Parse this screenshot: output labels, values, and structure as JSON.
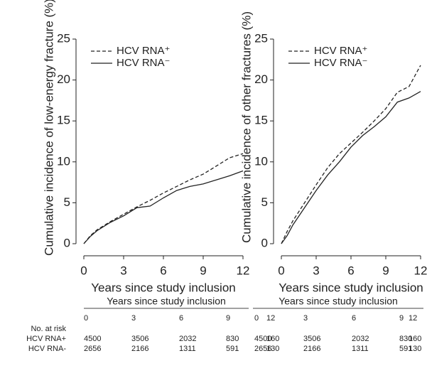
{
  "chart_data": [
    {
      "type": "line",
      "ylabel": "Cumulative incidence of low-energy fracture (%)",
      "xlabel": "Years since study inclusion",
      "x": [
        0,
        0.5,
        1,
        2,
        3,
        4,
        5,
        6,
        7,
        8,
        9,
        10,
        11,
        12
      ],
      "series": [
        {
          "name": "HCV RNA⁺",
          "color": "#222222",
          "dash": true,
          "values": [
            0,
            1.0,
            1.7,
            2.7,
            3.6,
            4.5,
            5.3,
            6.2,
            7.0,
            7.8,
            8.5,
            9.5,
            10.5,
            11.0
          ]
        },
        {
          "name": "HCV RNA⁻",
          "color": "#222222",
          "dash": false,
          "values": [
            0,
            0.9,
            1.6,
            2.6,
            3.4,
            4.4,
            4.6,
            5.6,
            6.5,
            7.0,
            7.3,
            7.8,
            8.3,
            8.9
          ]
        }
      ],
      "xlim": [
        0,
        12
      ],
      "xticks": [
        0,
        3,
        6,
        9,
        12
      ],
      "ylim": [
        0,
        25
      ],
      "yticks": [
        0,
        5,
        10,
        15,
        20,
        25
      ],
      "legend": "top-left"
    },
    {
      "type": "line",
      "ylabel": "Cumulative incidence of other fractures (%)",
      "xlabel": "Years since study inclusion",
      "x": [
        0,
        0.5,
        1,
        2,
        3,
        4,
        5,
        6,
        7,
        8,
        9,
        10,
        11,
        12
      ],
      "series": [
        {
          "name": "HCV RNA⁺",
          "color": "#222222",
          "dash": true,
          "values": [
            0,
            1.5,
            2.8,
            5.0,
            7.2,
            9.3,
            11.0,
            12.3,
            13.6,
            15.0,
            16.5,
            18.5,
            19.2,
            21.8
          ]
        },
        {
          "name": "HCV RNA⁻",
          "color": "#222222",
          "dash": false,
          "values": [
            0,
            1.0,
            2.3,
            4.4,
            6.5,
            8.4,
            10.0,
            11.8,
            13.2,
            14.3,
            15.5,
            17.3,
            17.8,
            18.6
          ]
        }
      ],
      "xlim": [
        0,
        12
      ],
      "xticks": [
        0,
        3,
        6,
        9,
        12
      ],
      "ylim": [
        0,
        25
      ],
      "yticks": [
        0,
        5,
        10,
        15,
        20,
        25
      ],
      "legend": "top-left"
    }
  ],
  "risk_table": {
    "label": "No. at risk",
    "row_names": [
      "HCV RNA+",
      "HCV RNA-"
    ],
    "panels": [
      {
        "header": "Years since study inclusion",
        "years": [
          "0",
          "3",
          "6",
          "9",
          "12"
        ],
        "counts": [
          [
            "4500",
            "3506",
            "2032",
            "830",
            "160"
          ],
          [
            "2656",
            "2166",
            "1311",
            "591",
            "130"
          ]
        ]
      },
      {
        "header": "Years since study inclusion",
        "years": [
          "0",
          "3",
          "6",
          "9",
          "12"
        ],
        "counts": [
          [
            "4500",
            "3506",
            "2032",
            "830",
            "160"
          ],
          [
            "2656",
            "2166",
            "1311",
            "591",
            "130"
          ]
        ]
      }
    ]
  }
}
